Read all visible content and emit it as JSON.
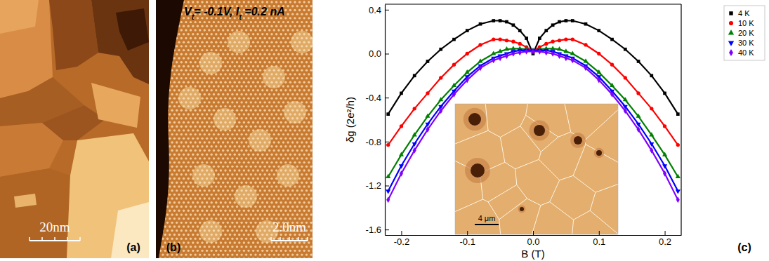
{
  "panel_a": {
    "label": "(a)",
    "scale_bar": "20nm"
  },
  "panel_b": {
    "label": "(b)",
    "annotation": "Vt= -0.1V, It =0.2 nA",
    "scale_bar": "2.0nm"
  },
  "inset_image": {
    "scale_bar": "4 μm"
  },
  "chart_data": {
    "type": "line",
    "annotations": [
      "(c)"
    ],
    "x_label": "B (T)",
    "y_label": "δg (2e²/h)",
    "x": [
      -0.22,
      -0.2,
      -0.18,
      -0.16,
      -0.14,
      -0.12,
      -0.1,
      -0.08,
      -0.06,
      -0.05,
      -0.04,
      -0.03,
      -0.02,
      -0.01,
      0,
      0.01,
      0.02,
      0.03,
      0.04,
      0.05,
      0.06,
      0.08,
      0.1,
      0.12,
      0.14,
      0.16,
      0.18,
      0.2,
      0.22
    ],
    "series": [
      {
        "name": "4 K",
        "color": "#000000",
        "marker": "square",
        "values": [
          -0.55,
          -0.36,
          -0.2,
          -0.07,
          0.04,
          0.13,
          0.21,
          0.27,
          0.3,
          0.3,
          0.29,
          0.26,
          0.21,
          0.14,
          0.0,
          0.14,
          0.21,
          0.26,
          0.29,
          0.3,
          0.3,
          0.27,
          0.21,
          0.13,
          0.04,
          -0.07,
          -0.2,
          -0.36,
          -0.55
        ]
      },
      {
        "name": "10 K",
        "color": "#ff0000",
        "marker": "circle",
        "values": [
          -0.83,
          -0.66,
          -0.5,
          -0.36,
          -0.22,
          -0.1,
          0.0,
          0.08,
          0.13,
          0.13,
          0.12,
          0.11,
          0.09,
          0.06,
          0.02,
          0.06,
          0.09,
          0.11,
          0.12,
          0.13,
          0.13,
          0.08,
          0.0,
          -0.1,
          -0.22,
          -0.36,
          -0.5,
          -0.66,
          -0.83
        ]
      },
      {
        "name": "20 K",
        "color": "#008000",
        "marker": "triangle",
        "values": [
          -1.12,
          -0.92,
          -0.74,
          -0.57,
          -0.42,
          -0.29,
          -0.17,
          -0.07,
          0.0,
          0.02,
          0.04,
          0.045,
          0.045,
          0.04,
          0.03,
          0.04,
          0.045,
          0.045,
          0.04,
          0.02,
          0.0,
          -0.07,
          -0.17,
          -0.29,
          -0.42,
          -0.57,
          -0.74,
          -0.92,
          -1.12
        ]
      },
      {
        "name": "30 K",
        "color": "#0000ff",
        "marker": "triangle-down",
        "values": [
          -1.25,
          -1.02,
          -0.82,
          -0.64,
          -0.48,
          -0.34,
          -0.21,
          -0.11,
          -0.04,
          -0.02,
          0.0,
          0.02,
          0.03,
          0.03,
          0.03,
          0.03,
          0.03,
          0.02,
          0.0,
          -0.02,
          -0.04,
          -0.11,
          -0.21,
          -0.34,
          -0.48,
          -0.64,
          -0.82,
          -1.02,
          -1.25
        ]
      },
      {
        "name": "40 K",
        "color": "#8000ff",
        "marker": "diamond",
        "values": [
          -1.33,
          -1.09,
          -0.88,
          -0.69,
          -0.52,
          -0.37,
          -0.24,
          -0.13,
          -0.06,
          -0.04,
          -0.02,
          0.0,
          0.01,
          0.02,
          0.02,
          0.02,
          0.01,
          0.0,
          -0.02,
          -0.04,
          -0.06,
          -0.13,
          -0.24,
          -0.37,
          -0.52,
          -0.69,
          -0.88,
          -1.09,
          -1.33
        ]
      }
    ],
    "xlim": [
      -0.225,
      0.225
    ],
    "ylim": [
      -1.65,
      0.45
    ],
    "xticks": [
      -0.2,
      -0.1,
      {
        "value": 0,
        "label": "0.0"
      },
      0.1,
      0.2
    ],
    "yticks": [
      -1.6,
      -1.2,
      -0.8,
      -0.4,
      {
        "value": 0,
        "label": "0.0"
      },
      0.4
    ],
    "grid": false,
    "legend": "upper right"
  }
}
